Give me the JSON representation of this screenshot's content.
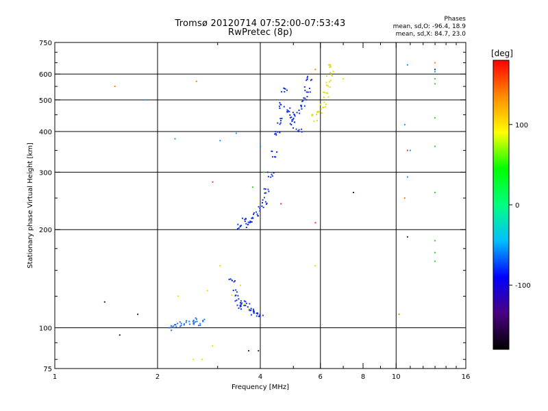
{
  "chart_data": {
    "type": "scatter",
    "title": "Tromsø 20120714 07:52:00-07:53:43",
    "subtitle": "RwPretec (8p)",
    "xlabel": "Frequency [MHz]",
    "ylabel": "Stationary phase Virtual Height [km]",
    "x_scale": "log",
    "y_scale": "log",
    "xlim": [
      1,
      16
    ],
    "ylim": [
      75,
      750
    ],
    "x_ticks": [
      1,
      2,
      4,
      6,
      8,
      10,
      16
    ],
    "y_ticks": [
      75,
      100,
      200,
      300,
      400,
      500,
      600,
      750
    ],
    "x_gridlines": [
      2,
      4,
      6,
      10
    ],
    "y_gridlines": [
      100,
      200,
      300,
      400,
      500,
      600
    ],
    "grid": true,
    "stats": {
      "heading": "Phases",
      "o_line": "mean, sd,O: -96.4, 18.9",
      "x_line": "mean, sd,X:  84.7, 23.0"
    },
    "colorbar": {
      "label": "[deg]",
      "range": [
        -180,
        180
      ],
      "ticks": [
        -100,
        0,
        100
      ],
      "colors": [
        "#000000",
        "#4b0082",
        "#0000ff",
        "#00bfff",
        "#00ff7f",
        "#00ff00",
        "#ffff00",
        "#ff8c00",
        "#ff0000"
      ],
      "placement": "right"
    },
    "series": [
      {
        "color": "#1030e0",
        "points": [
          [
            3.5,
            205
          ],
          [
            3.6,
            212
          ],
          [
            3.7,
            208
          ],
          [
            3.8,
            215
          ],
          [
            3.9,
            222
          ],
          [
            4.0,
            232
          ],
          [
            4.1,
            245
          ],
          [
            4.2,
            265
          ],
          [
            4.3,
            295
          ],
          [
            4.4,
            340
          ],
          [
            4.5,
            390
          ],
          [
            4.6,
            430
          ],
          [
            4.65,
            480
          ],
          [
            4.7,
            540
          ],
          [
            4.8,
            470
          ],
          [
            4.9,
            440
          ],
          [
            5.0,
            420
          ],
          [
            5.1,
            455
          ],
          [
            5.2,
            400
          ],
          [
            5.3,
            470
          ],
          [
            5.4,
            500
          ],
          [
            5.5,
            540
          ],
          [
            5.55,
            580
          ]
        ]
      },
      {
        "color": "#1030e0",
        "points": [
          [
            3.3,
            140
          ],
          [
            3.4,
            128
          ],
          [
            3.45,
            120
          ],
          [
            3.5,
            115
          ],
          [
            3.6,
            118
          ],
          [
            3.7,
            116
          ],
          [
            3.8,
            112
          ],
          [
            3.9,
            111
          ],
          [
            4.0,
            110
          ]
        ]
      },
      {
        "color": "#1a70f0",
        "points": [
          [
            2.2,
            100
          ],
          [
            2.3,
            102
          ],
          [
            2.4,
            103
          ],
          [
            2.5,
            104
          ],
          [
            2.6,
            105
          ],
          [
            2.7,
            104
          ]
        ]
      },
      {
        "color": "#e0e000",
        "points": [
          [
            5.8,
            440
          ],
          [
            6.0,
            460
          ],
          [
            6.1,
            480
          ],
          [
            6.2,
            520
          ],
          [
            6.3,
            560
          ],
          [
            6.4,
            600
          ],
          [
            6.45,
            630
          ]
        ]
      },
      {
        "color": "#e0e000",
        "points": [
          [
            3.6,
            118
          ],
          [
            3.7,
            114
          ],
          [
            3.5,
            135
          ],
          [
            3.3,
            126
          ]
        ]
      },
      {
        "color": "#00a0ff",
        "points": [
          [
            1.85,
            500
          ],
          [
            2.25,
            380
          ],
          [
            3.05,
            375
          ],
          [
            3.4,
            395
          ],
          [
            4.0,
            360
          ],
          [
            10.6,
            420
          ],
          [
            10.8,
            290
          ],
          [
            10.8,
            640
          ],
          [
            13.0,
            610
          ],
          [
            11.0,
            350
          ]
        ]
      },
      {
        "color": "#ff8000",
        "points": [
          [
            1.5,
            550
          ],
          [
            2.6,
            570
          ],
          [
            5.8,
            620
          ],
          [
            10.6,
            250
          ],
          [
            10.2,
            110
          ],
          [
            13.0,
            650
          ]
        ]
      },
      {
        "color": "#30d030",
        "points": [
          [
            13.0,
            580
          ],
          [
            13.0,
            560
          ],
          [
            13.0,
            440
          ],
          [
            13.0,
            360
          ],
          [
            13.0,
            260
          ],
          [
            13.0,
            185
          ],
          [
            13.0,
            170
          ],
          [
            13.0,
            160
          ],
          [
            3.8,
            270
          ],
          [
            4.1,
            300
          ]
        ]
      },
      {
        "color": "#ff3030",
        "points": [
          [
            2.9,
            280
          ],
          [
            10.8,
            350
          ],
          [
            4.6,
            240
          ],
          [
            5.8,
            210
          ]
        ]
      },
      {
        "color": "#202060",
        "points": [
          [
            1.4,
            120
          ],
          [
            1.55,
            95
          ],
          [
            3.7,
            85
          ],
          [
            3.95,
            85
          ],
          [
            7.5,
            260
          ],
          [
            10.8,
            190
          ],
          [
            13.0,
            620
          ],
          [
            1.75,
            110
          ]
        ]
      },
      {
        "color": "#ffd700",
        "points": [
          [
            2.55,
            80
          ],
          [
            2.7,
            80
          ],
          [
            2.8,
            130
          ],
          [
            2.9,
            88
          ],
          [
            3.05,
            155
          ],
          [
            5.8,
            155
          ],
          [
            7.0,
            580
          ],
          [
            2.3,
            125
          ]
        ]
      }
    ]
  }
}
